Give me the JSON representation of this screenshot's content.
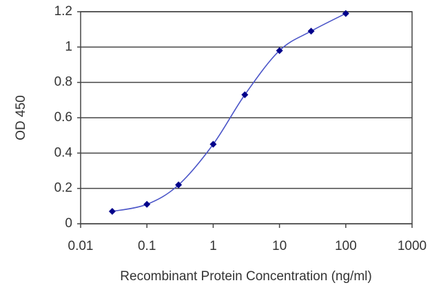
{
  "chart_data": {
    "type": "line",
    "xlabel": "Recombinant Protein Concentration (ng/ml)",
    "ylabel": "OD 450",
    "x": [
      0.03,
      0.1,
      0.3,
      1,
      3,
      10,
      30,
      100
    ],
    "series": [
      {
        "color": "#00008b",
        "line_color": "#4b55c8",
        "values": [
          0.07,
          0.11,
          0.22,
          0.45,
          0.73,
          0.98,
          1.09,
          1.19
        ]
      }
    ],
    "xscale": "log",
    "xlim": [
      0.01,
      1000
    ],
    "xticks": [
      0.01,
      0.1,
      1,
      10,
      100,
      1000
    ],
    "ylim": [
      0,
      1.2
    ],
    "yticks": [
      0,
      0.2,
      0.4,
      0.6,
      0.8,
      1,
      1.2
    ],
    "grid": true
  }
}
